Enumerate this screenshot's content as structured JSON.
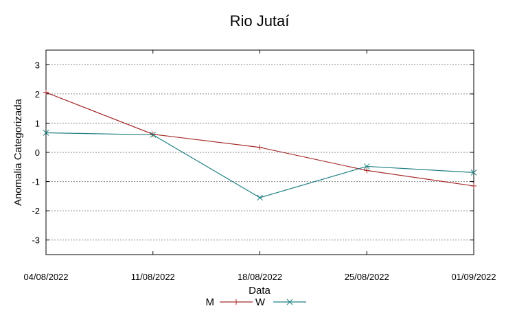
{
  "chart_data": {
    "type": "line",
    "title": "Rio Jutaí",
    "xlabel": "Data",
    "ylabel": "Anomalia Categorizada",
    "categories": [
      "04/08/2022",
      "11/08/2022",
      "18/08/2022",
      "25/08/2022",
      "01/09/2022"
    ],
    "ylim": [
      -3.5,
      3.5
    ],
    "yticks": [
      "3",
      "2",
      "1",
      "0",
      "-1",
      "-2",
      "-3"
    ],
    "ytick_values": [
      3,
      2,
      1,
      0,
      -1,
      -2,
      -3
    ],
    "grid": "horizontal dashed",
    "legend_position": "bottom",
    "series": [
      {
        "name": "M",
        "values": [
          2.05,
          0.62,
          0.17,
          -0.62,
          -1.15
        ],
        "color": "#a52a2a",
        "marker": "plus"
      },
      {
        "name": "W",
        "values": [
          0.67,
          0.6,
          -1.55,
          -0.48,
          -0.69
        ],
        "color": "#1f7f82",
        "marker": "x"
      }
    ]
  }
}
